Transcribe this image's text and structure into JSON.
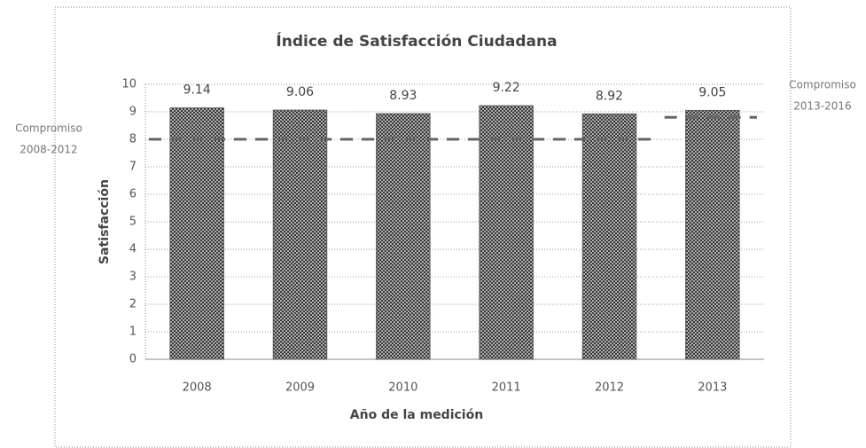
{
  "chart_data": {
    "type": "bar",
    "title": "Índice de Satisfacción Ciudadana",
    "x_label": "Año de la medición",
    "y_label": "Satisfacción",
    "categories": [
      "2008",
      "2009",
      "2010",
      "2011",
      "2012",
      "2013"
    ],
    "values": [
      9.14,
      9.06,
      8.93,
      9.22,
      8.92,
      9.05
    ],
    "color": "#5a5a5a",
    "ylim": [
      0,
      10
    ],
    "yticks": [
      0,
      1,
      2,
      3,
      4,
      5,
      6,
      7,
      8,
      9,
      10
    ],
    "grid": true,
    "reference_lines": [
      {
        "label_lines": [
          "Compromiso",
          "2008-2012"
        ],
        "value": 8,
        "categories": [
          "2008",
          "2009",
          "2010",
          "2011",
          "2012"
        ],
        "side": "left"
      },
      {
        "label_lines": [
          "Compromiso",
          "2013-2016"
        ],
        "value": 8.8,
        "categories": [
          "2013"
        ],
        "side": "right"
      }
    ]
  }
}
